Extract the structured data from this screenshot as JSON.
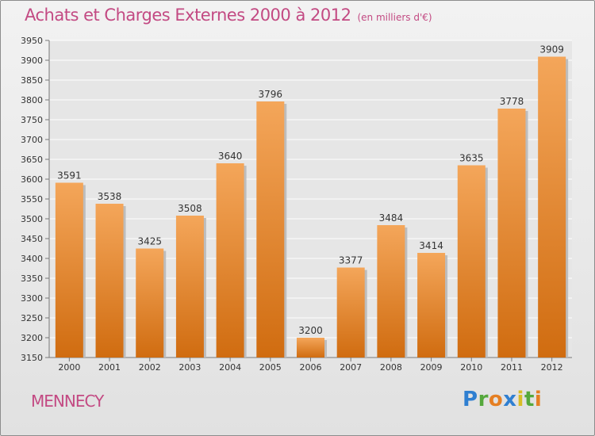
{
  "title": "Achats et Charges Externes 2000 à 2012",
  "subtitle": "(en milliers d'€)",
  "town": "MENNECY",
  "logo": {
    "letters": [
      "P",
      "r",
      "o",
      "x",
      "i",
      "t",
      "i"
    ],
    "colors": [
      "#2f7fd1",
      "#55a83c",
      "#e57f23",
      "#2f7fd1",
      "#d8bd25",
      "#55a83c",
      "#e57f23"
    ]
  },
  "colors": {
    "bar_top": "#f4a65a",
    "bar_bottom": "#d06c10",
    "title": "#c34a83"
  },
  "chart_data": {
    "type": "bar",
    "title": "Achats et Charges Externes 2000 à 2012",
    "subtitle": "(en milliers d'€)",
    "xlabel": "",
    "ylabel": "",
    "categories": [
      "2000",
      "2001",
      "2002",
      "2003",
      "2004",
      "2005",
      "2006",
      "2007",
      "2008",
      "2009",
      "2010",
      "2011",
      "2012"
    ],
    "values": [
      3591,
      3538,
      3425,
      3508,
      3640,
      3796,
      3200,
      3377,
      3484,
      3414,
      3635,
      3778,
      3909
    ],
    "ylim": [
      3150,
      3950
    ],
    "yticks": [
      3150,
      3200,
      3250,
      3300,
      3350,
      3400,
      3450,
      3500,
      3550,
      3600,
      3650,
      3700,
      3750,
      3800,
      3850,
      3900,
      3950
    ],
    "grid": true,
    "legend": "none"
  }
}
